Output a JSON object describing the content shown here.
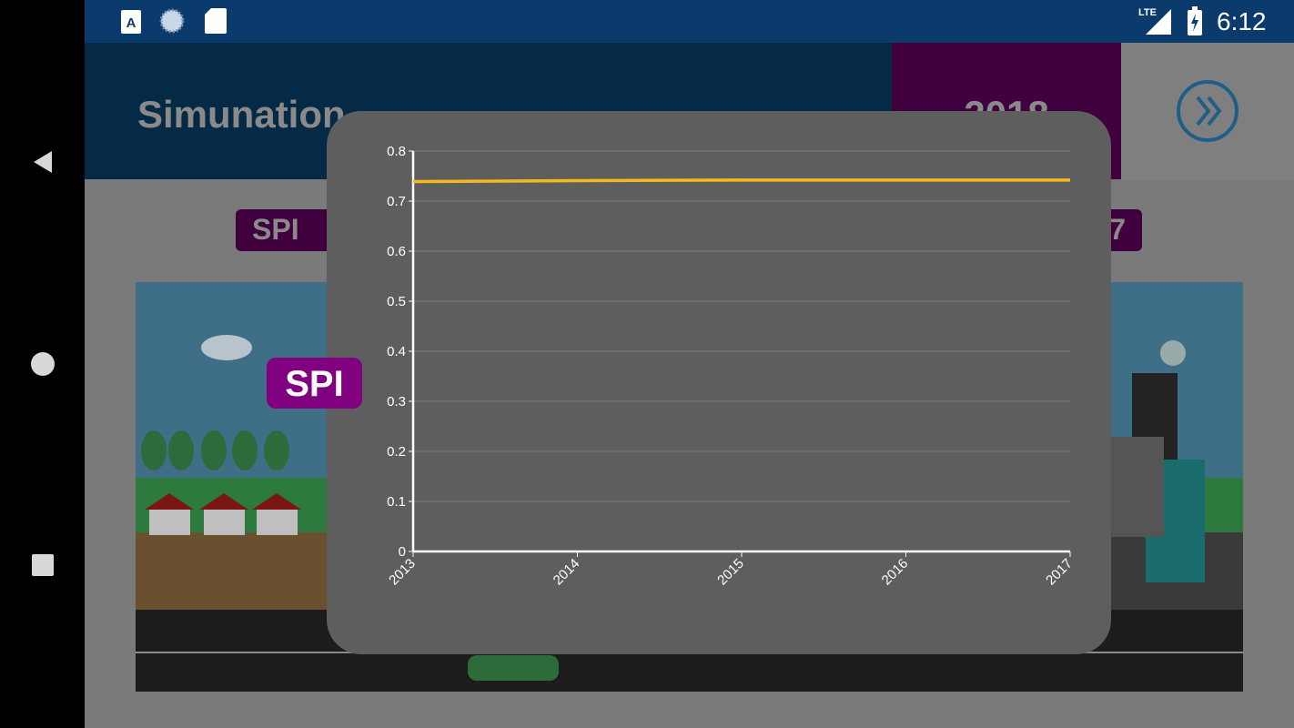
{
  "status_bar": {
    "time": "6:12",
    "network": "LTE",
    "left_icons": [
      "font-a-icon",
      "sync-icon",
      "sd-card-icon"
    ]
  },
  "nav": {
    "icons": [
      "back-icon",
      "home-icon",
      "recents-icon"
    ]
  },
  "header": {
    "title": "Simunation",
    "year": "2018",
    "next_icon": "double-chevron-right-icon"
  },
  "tabs": {
    "left": "SPI",
    "right": "7"
  },
  "colors": {
    "status_bar": "#0b3a6c",
    "header": "#052a45",
    "year_bg": "#40003e",
    "badge": "#800080",
    "line": "#f5b91e",
    "modal": "#5e5e5e"
  },
  "badge": {
    "label": "SPI"
  },
  "chart_data": {
    "type": "line",
    "x": [
      "2013",
      "2014",
      "2015",
      "2016",
      "2017"
    ],
    "series": [
      {
        "values": [
          0.739,
          0.741,
          0.742,
          0.742,
          0.742
        ],
        "color": "#f5b91e"
      }
    ],
    "yticks": [
      "0",
      "0.1",
      "0.2",
      "0.3",
      "0.4",
      "0.5",
      "0.6",
      "0.7",
      "0.8"
    ],
    "ylim": [
      0,
      0.8
    ],
    "grid": true,
    "legend": "none"
  }
}
